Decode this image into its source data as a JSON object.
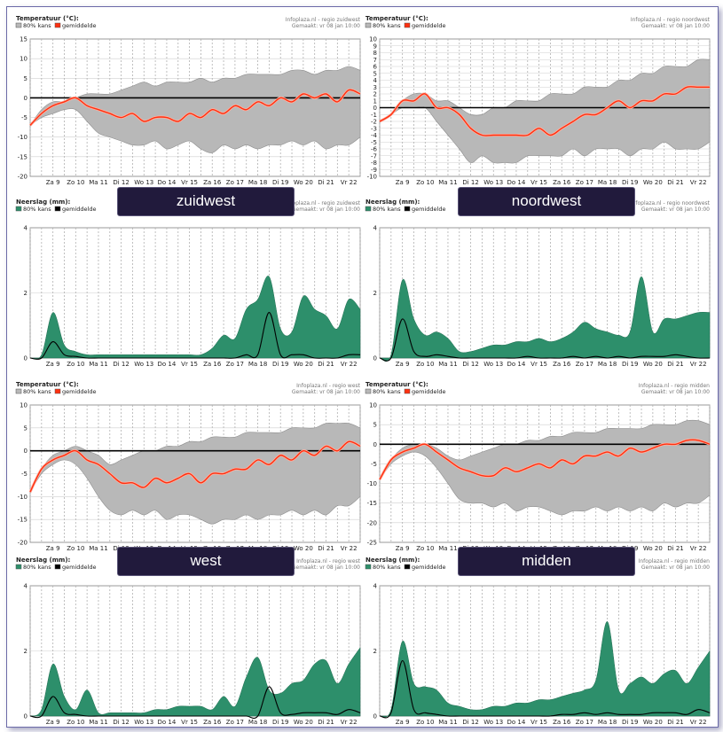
{
  "page": {
    "frame_border_color": "#6b6aa8"
  },
  "common": {
    "days": [
      "Za 9",
      "Zo 10",
      "Ma 11",
      "Di 12",
      "Wo 13",
      "Do 14",
      "Vr 15",
      "Za 16",
      "Zo 17",
      "Ma 18",
      "Di 19",
      "Wo 20",
      "Di 21",
      "Vr 22"
    ],
    "made": "Gemaakt:  vr 08 jan 10:00",
    "temp_title": "Temperatuur (°C):",
    "rain_title": "Neerslag (mm):",
    "legend_band": "80% kans",
    "legend_mean": "gemiddelde",
    "colors": {
      "temp_band": "#b8b8b8",
      "temp_mean": "#ff3010",
      "rain_band": "#2d8f6b",
      "rain_mean": "#000000",
      "label_bg": "#211a3c"
    }
  },
  "labels": {
    "zuidwest": "zuidwest",
    "noordwest": "noordwest",
    "west": "west",
    "midden": "midden"
  },
  "chart_data": [
    {
      "id": "temp-zw",
      "type": "area",
      "title": "Temperatuur (°C):",
      "source": "Infoplaza.nl - regio zuidwest",
      "ylim": [
        -20,
        15
      ],
      "yticks": [
        15,
        10,
        5,
        0,
        -5,
        -10,
        -15,
        -20
      ],
      "x": [
        0,
        0.5,
        1,
        1.5,
        2,
        2.5,
        3,
        3.5,
        4,
        4.5,
        5,
        5.5,
        6,
        6.5,
        7,
        7.5,
        8,
        8.5,
        9,
        9.5,
        10,
        10.5,
        11,
        11.5,
        12,
        12.5,
        13,
        13.5,
        14,
        14.5
      ],
      "series": [
        {
          "name": "80% kans (boven)",
          "values": [
            -7,
            -3,
            -1,
            -1,
            0,
            1,
            1,
            1,
            2,
            3,
            4,
            3,
            4,
            4,
            4,
            5,
            4,
            5,
            5,
            6,
            6,
            6,
            6,
            7,
            7,
            6,
            7,
            7,
            8,
            7
          ]
        },
        {
          "name": "80% kans (onder)",
          "values": [
            -7,
            -5,
            -4,
            -3,
            -3,
            -6,
            -9,
            -10,
            -11,
            -12,
            -12,
            -11,
            -13,
            -12,
            -11,
            -13,
            -14,
            -12,
            -13,
            -12,
            -13,
            -12,
            -12,
            -11,
            -12,
            -11,
            -13,
            -12,
            -12,
            -10
          ]
        },
        {
          "name": "gemiddelde",
          "values": [
            -7,
            -4,
            -2,
            -1,
            0,
            -2,
            -3,
            -4,
            -5,
            -4,
            -6,
            -5,
            -5,
            -6,
            -4,
            -5,
            -3,
            -4,
            -2,
            -3,
            -1,
            -2,
            0,
            -1,
            1,
            0,
            1,
            -1,
            2,
            1
          ]
        }
      ]
    },
    {
      "id": "temp-nw",
      "type": "area",
      "title": "Temperatuur (°C):",
      "source": "Infoplaza.nl - regio noordwest",
      "ylim": [
        -10,
        10
      ],
      "yticks": [
        10,
        9,
        8,
        7,
        6,
        5,
        4,
        3,
        2,
        1,
        0,
        -1,
        -2,
        -3,
        -4,
        -5,
        -6,
        -7,
        -8,
        -9,
        -10
      ],
      "x": [
        0,
        0.5,
        1,
        1.5,
        2,
        2.5,
        3,
        3.5,
        4,
        4.5,
        5,
        5.5,
        6,
        6.5,
        7,
        7.5,
        8,
        8.5,
        9,
        9.5,
        10,
        10.5,
        11,
        11.5,
        12,
        12.5,
        13,
        13.5,
        14,
        14.5
      ],
      "series": [
        {
          "name": "80% kans (boven)",
          "values": [
            -2,
            -1,
            1,
            2,
            2,
            1,
            1,
            0,
            -1,
            -1,
            0,
            0,
            1,
            1,
            1,
            2,
            2,
            2,
            3,
            3,
            3,
            4,
            4,
            5,
            5,
            6,
            6,
            6,
            7,
            7
          ]
        },
        {
          "name": "80% kans (onder)",
          "values": [
            -2,
            -1,
            0,
            0,
            0,
            -2,
            -4,
            -6,
            -8,
            -7,
            -8,
            -8,
            -8,
            -7,
            -7,
            -7,
            -7,
            -6,
            -7,
            -6,
            -6,
            -6,
            -7,
            -6,
            -6,
            -5,
            -6,
            -6,
            -6,
            -5
          ]
        },
        {
          "name": "gemiddelde",
          "values": [
            -2,
            -1,
            1,
            1,
            2,
            0,
            0,
            -1,
            -3,
            -4,
            -4,
            -4,
            -4,
            -4,
            -3,
            -4,
            -3,
            -2,
            -1,
            -1,
            0,
            1,
            0,
            1,
            1,
            2,
            2,
            3,
            3,
            3
          ]
        }
      ]
    },
    {
      "id": "rain-zw",
      "type": "area",
      "title": "Neerslag (mm):",
      "source": "Infoplaza.nl - regio zuidwest",
      "ylim": [
        0,
        4
      ],
      "yticks": [
        4,
        2,
        0
      ],
      "x": [
        0,
        0.5,
        1,
        1.5,
        2,
        2.5,
        3,
        3.5,
        4,
        4.5,
        5,
        5.5,
        6,
        6.5,
        7,
        7.5,
        8,
        8.5,
        9,
        9.5,
        10,
        10.5,
        11,
        11.5,
        12,
        12.5,
        13,
        13.5,
        14,
        14.5
      ],
      "series": [
        {
          "name": "80% kans",
          "values": [
            0,
            0.1,
            1.4,
            0.4,
            0.2,
            0.1,
            0.1,
            0.1,
            0.1,
            0.1,
            0.1,
            0.1,
            0.1,
            0.1,
            0.1,
            0.1,
            0.3,
            0.7,
            0.6,
            1.5,
            1.8,
            2.5,
            0.9,
            0.8,
            1.9,
            1.5,
            1.3,
            0.9,
            1.8,
            1.5
          ]
        },
        {
          "name": "gemiddelde",
          "values": [
            0,
            0,
            0.5,
            0.1,
            0.05,
            0,
            0,
            0,
            0,
            0,
            0,
            0,
            0,
            0,
            0,
            0,
            0,
            0,
            0,
            0.1,
            0.1,
            1.4,
            0.1,
            0.1,
            0.1,
            0,
            0,
            0,
            0.1,
            0.1
          ]
        }
      ]
    },
    {
      "id": "rain-nw",
      "type": "area",
      "title": "Neerslag (mm):",
      "source": "Infoplaza.nl - regio noordwest",
      "ylim": [
        0,
        4
      ],
      "yticks": [
        4,
        2,
        0
      ],
      "x": [
        0,
        0.5,
        1,
        1.5,
        2,
        2.5,
        3,
        3.5,
        4,
        4.5,
        5,
        5.5,
        6,
        6.5,
        7,
        7.5,
        8,
        8.5,
        9,
        9.5,
        10,
        10.5,
        11,
        11.5,
        12,
        12.5,
        13,
        13.5,
        14,
        14.5
      ],
      "series": [
        {
          "name": "80% kans",
          "values": [
            0,
            0.1,
            2.4,
            1.2,
            0.7,
            0.8,
            0.6,
            0.2,
            0.2,
            0.3,
            0.4,
            0.4,
            0.5,
            0.5,
            0.6,
            0.5,
            0.6,
            0.8,
            1.1,
            0.9,
            0.8,
            0.7,
            0.8,
            2.5,
            0.8,
            1.2,
            1.2,
            1.3,
            1.4,
            1.4
          ]
        },
        {
          "name": "gemiddelde",
          "values": [
            0,
            0,
            1.2,
            0.2,
            0.05,
            0.1,
            0.05,
            0,
            0,
            0,
            0,
            0,
            0,
            0.05,
            0,
            0,
            0,
            0.05,
            0,
            0.05,
            0,
            0.05,
            0,
            0.05,
            0.05,
            0.05,
            0.1,
            0.05,
            0,
            0
          ]
        }
      ]
    },
    {
      "id": "temp-w",
      "type": "area",
      "title": "Temperatuur (°C):",
      "source": "Infoplaza.nl - regio west",
      "ylim": [
        -20,
        10
      ],
      "yticks": [
        10,
        5,
        0,
        -5,
        -10,
        -15,
        -20
      ],
      "x": [
        0,
        0.5,
        1,
        1.5,
        2,
        2.5,
        3,
        3.5,
        4,
        4.5,
        5,
        5.5,
        6,
        6.5,
        7,
        7.5,
        8,
        8.5,
        9,
        9.5,
        10,
        10.5,
        11,
        11.5,
        12,
        12.5,
        13,
        13.5,
        14,
        14.5
      ],
      "series": [
        {
          "name": "80% kans (boven)",
          "values": [
            -9,
            -4,
            -1,
            0,
            1,
            0,
            -1,
            -3,
            -2,
            -1,
            0,
            0,
            1,
            1,
            2,
            2,
            3,
            3,
            3,
            4,
            4,
            4,
            4,
            5,
            5,
            5,
            6,
            6,
            6,
            5
          ]
        },
        {
          "name": "80% kans (onder)",
          "values": [
            -9,
            -5,
            -3,
            -2,
            -3,
            -6,
            -10,
            -13,
            -14,
            -13,
            -14,
            -13,
            -15,
            -14,
            -14,
            -15,
            -16,
            -15,
            -15,
            -14,
            -15,
            -14,
            -14,
            -13,
            -14,
            -13,
            -14,
            -12,
            -12,
            -10
          ]
        },
        {
          "name": "gemiddelde",
          "values": [
            -9,
            -4,
            -2,
            -1,
            0,
            -2,
            -3,
            -5,
            -7,
            -7,
            -8,
            -6,
            -7,
            -6,
            -5,
            -7,
            -5,
            -5,
            -4,
            -4,
            -2,
            -3,
            -1,
            -2,
            0,
            -1,
            1,
            0,
            2,
            1
          ]
        }
      ]
    },
    {
      "id": "temp-m",
      "type": "area",
      "title": "Temperatuur (°C):",
      "source": "Infoplaza.nl - regio midden",
      "ylim": [
        -25,
        10
      ],
      "yticks": [
        10,
        5,
        0,
        -5,
        -10,
        -15,
        -20,
        -25
      ],
      "x": [
        0,
        0.5,
        1,
        1.5,
        2,
        2.5,
        3,
        3.5,
        4,
        4.5,
        5,
        5.5,
        6,
        6.5,
        7,
        7.5,
        8,
        8.5,
        9,
        9.5,
        10,
        10.5,
        11,
        11.5,
        12,
        12.5,
        13,
        13.5,
        14,
        14.5
      ],
      "series": [
        {
          "name": "80% kans (boven)",
          "values": [
            -9,
            -4,
            -1,
            0,
            0,
            -1,
            -3,
            -4,
            -3,
            -2,
            -1,
            0,
            0,
            1,
            1,
            2,
            2,
            3,
            3,
            3,
            4,
            4,
            4,
            4,
            5,
            5,
            5,
            6,
            6,
            5
          ]
        },
        {
          "name": "80% kans (onder)",
          "values": [
            -9,
            -5,
            -3,
            -2,
            -3,
            -6,
            -10,
            -14,
            -15,
            -15,
            -16,
            -15,
            -17,
            -16,
            -16,
            -17,
            -18,
            -17,
            -17,
            -16,
            -17,
            -16,
            -17,
            -16,
            -17,
            -15,
            -16,
            -15,
            -15,
            -13
          ]
        },
        {
          "name": "gemiddelde",
          "values": [
            -9,
            -4,
            -2,
            -1,
            0,
            -2,
            -4,
            -6,
            -7,
            -8,
            -8,
            -6,
            -7,
            -6,
            -5,
            -6,
            -4,
            -5,
            -3,
            -3,
            -2,
            -3,
            -1,
            -2,
            -1,
            0,
            0,
            1,
            1,
            0
          ]
        }
      ]
    },
    {
      "id": "rain-w",
      "type": "area",
      "title": "Neerslag (mm):",
      "source": "Infoplaza.nl - regio west",
      "ylim": [
        0,
        4
      ],
      "yticks": [
        4,
        2,
        0
      ],
      "x": [
        0,
        0.5,
        1,
        1.5,
        2,
        2.5,
        3,
        3.5,
        4,
        4.5,
        5,
        5.5,
        6,
        6.5,
        7,
        7.5,
        8,
        8.5,
        9,
        9.5,
        10,
        10.5,
        11,
        11.5,
        12,
        12.5,
        13,
        13.5,
        14,
        14.5
      ],
      "series": [
        {
          "name": "80% kans",
          "values": [
            0,
            0.2,
            1.6,
            0.6,
            0.2,
            0.8,
            0.1,
            0.1,
            0.1,
            0.1,
            0.1,
            0.2,
            0.2,
            0.3,
            0.3,
            0.3,
            0.2,
            0.6,
            0.3,
            1.2,
            1.8,
            0.8,
            0.7,
            1.0,
            1.1,
            1.6,
            1.7,
            1.0,
            1.6,
            2.1
          ]
        },
        {
          "name": "gemiddelde",
          "values": [
            0,
            0,
            0.6,
            0.1,
            0.05,
            0,
            0,
            0,
            0,
            0,
            0,
            0,
            0,
            0,
            0,
            0,
            0,
            0,
            0,
            0,
            0,
            0.9,
            0.1,
            0.05,
            0.1,
            0.1,
            0.1,
            0.05,
            0.2,
            0.1
          ]
        }
      ]
    },
    {
      "id": "rain-m",
      "type": "area",
      "title": "Neerslag (mm):",
      "source": "Infoplaza.nl - regio midden",
      "ylim": [
        0,
        4
      ],
      "yticks": [
        4,
        2,
        0
      ],
      "x": [
        0,
        0.5,
        1,
        1.5,
        2,
        2.5,
        3,
        3.5,
        4,
        4.5,
        5,
        5.5,
        6,
        6.5,
        7,
        7.5,
        8,
        8.5,
        9,
        9.5,
        10,
        10.5,
        11,
        11.5,
        12,
        12.5,
        13,
        13.5,
        14,
        14.5
      ],
      "series": [
        {
          "name": "80% kans",
          "values": [
            0,
            0.2,
            2.3,
            1.0,
            0.9,
            0.8,
            0.4,
            0.3,
            0.2,
            0.2,
            0.3,
            0.3,
            0.4,
            0.4,
            0.5,
            0.5,
            0.6,
            0.7,
            0.8,
            1.1,
            2.9,
            0.8,
            1.0,
            1.2,
            1.0,
            1.3,
            1.4,
            1.0,
            1.5,
            2.0
          ]
        },
        {
          "name": "gemiddelde",
          "values": [
            0,
            0.1,
            1.7,
            0.2,
            0.1,
            0.05,
            0,
            0,
            0,
            0,
            0,
            0,
            0,
            0,
            0,
            0,
            0.05,
            0.05,
            0.1,
            0.05,
            0.1,
            0.05,
            0.05,
            0.05,
            0.1,
            0.1,
            0.1,
            0.05,
            0.2,
            0.1
          ]
        }
      ]
    }
  ]
}
